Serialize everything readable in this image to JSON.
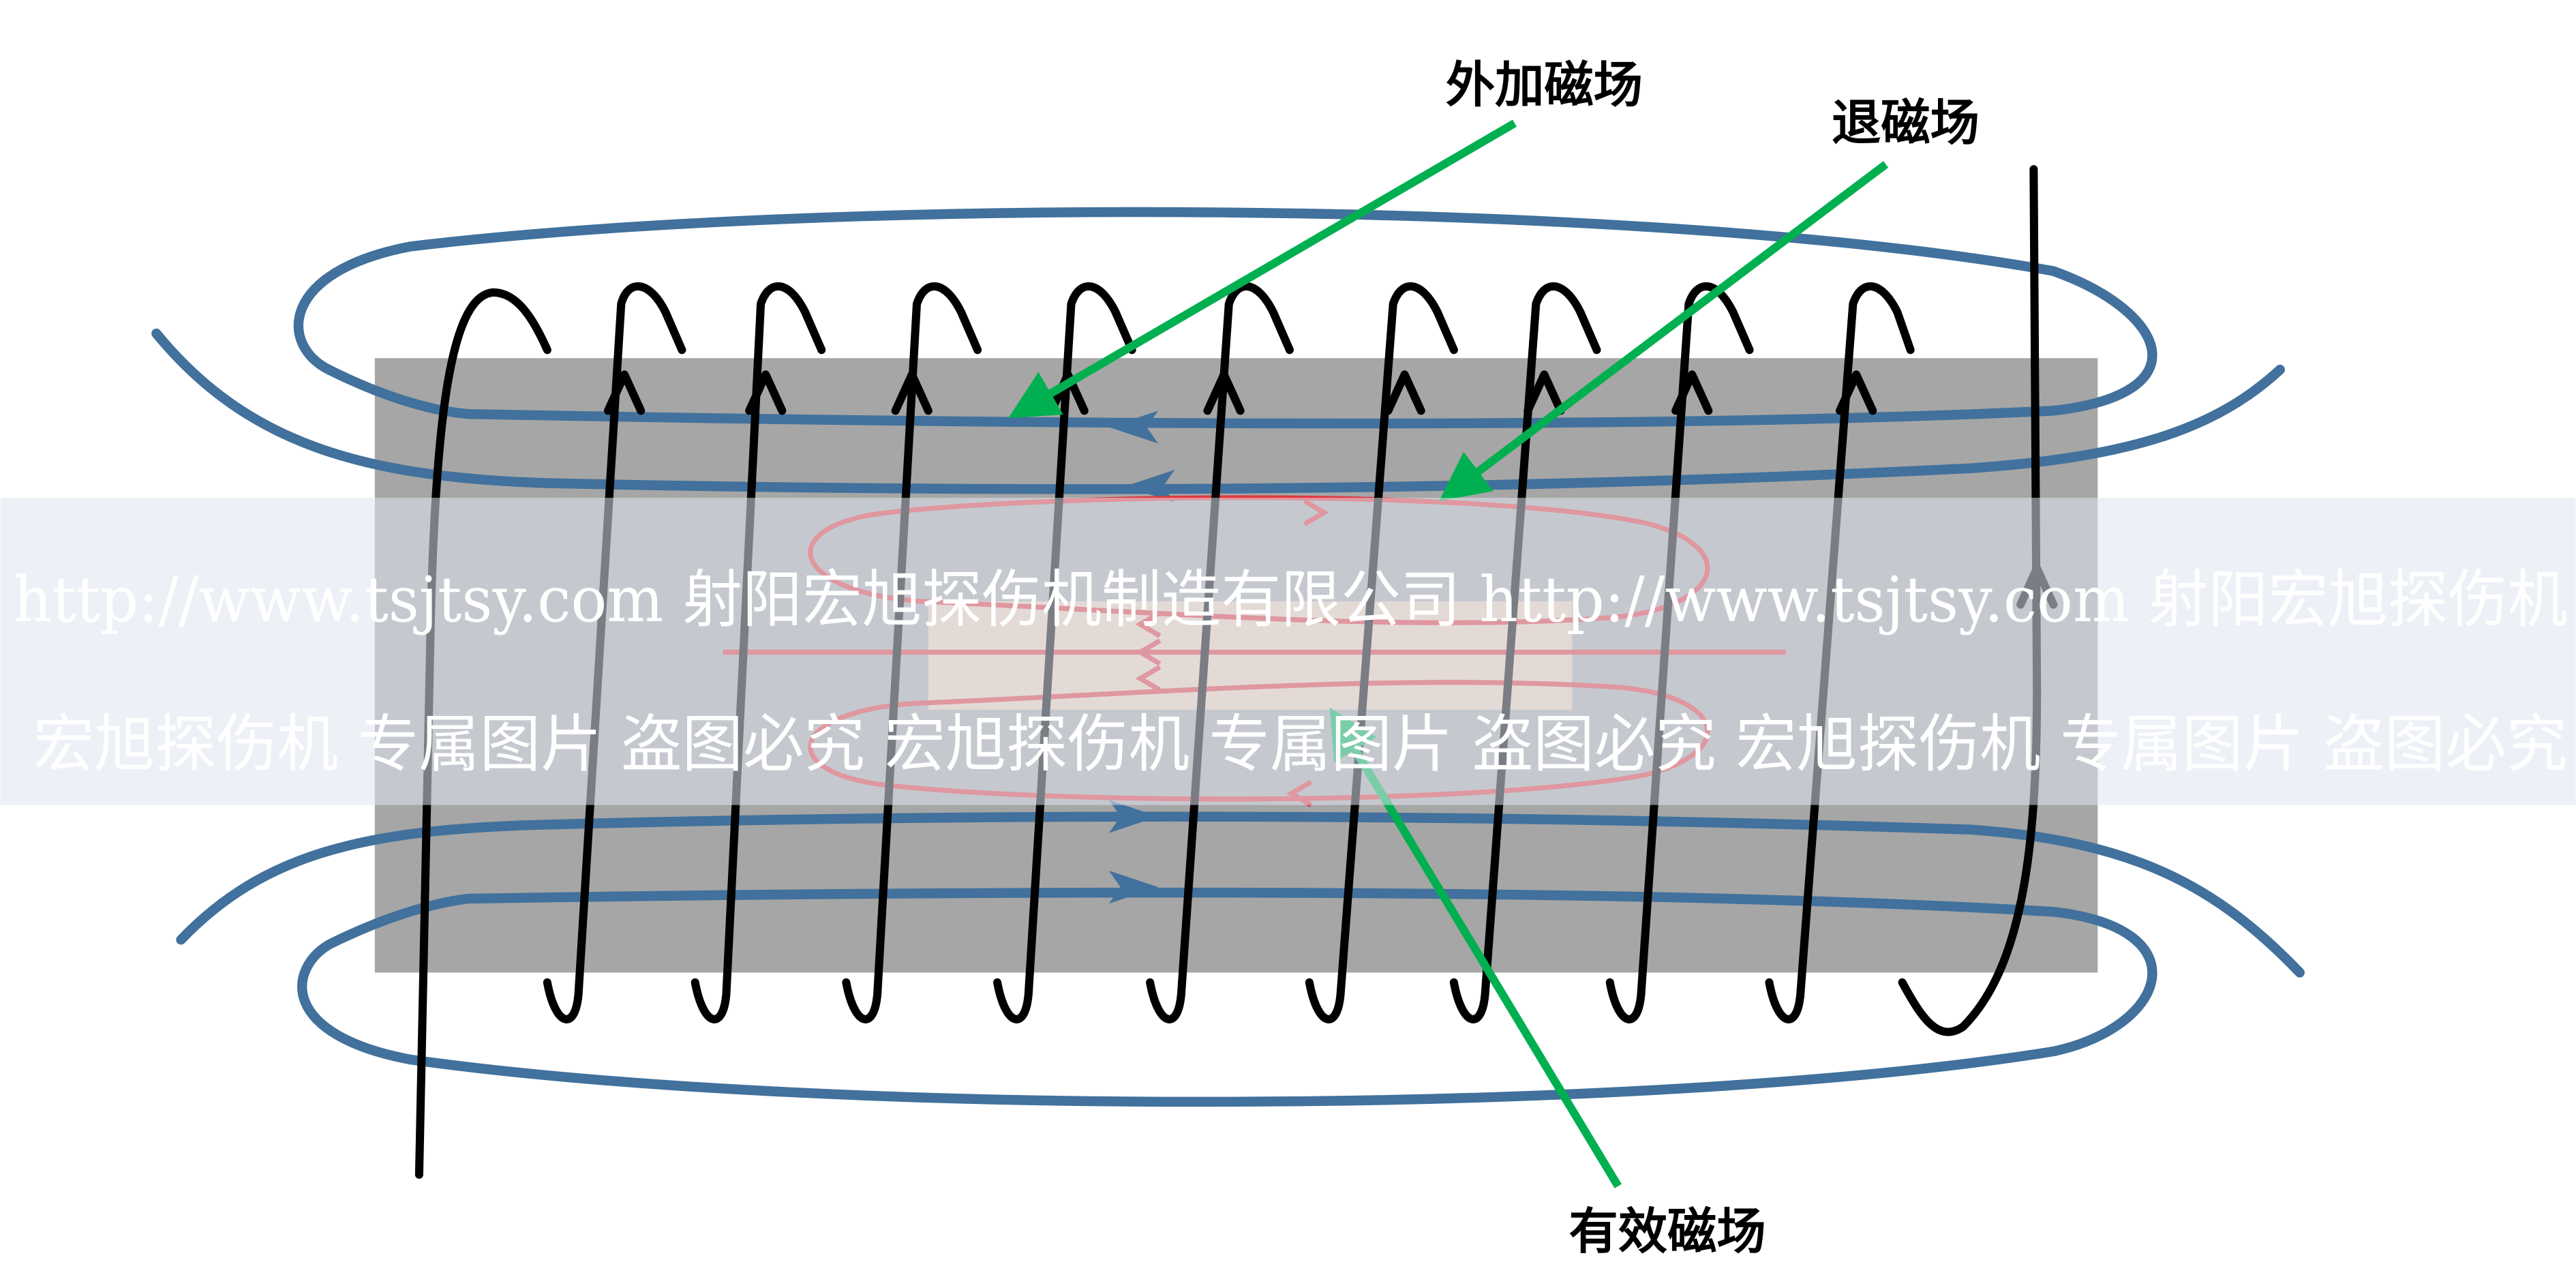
{
  "labels": {
    "applied_field": "外加磁场",
    "demagnetizing_field": "退磁场",
    "effective_field": "有效磁场"
  },
  "watermark": {
    "line1": "http://www.tsjtsy.com 射阳宏旭探伤机制造有限公司  http://www.tsjtsy.com 射阳宏旭探伤机",
    "line2": "宏旭探伤机 专属图片 盗图必究    宏旭探伤机 专属图片 盗图必究    宏旭探伤机 专属图片 盗图必究"
  },
  "colors": {
    "rod": "#a6a6a6",
    "effective_region": "#e9cdb6",
    "applied_field_lines": "#41719c",
    "demagnetizing_field_lines": "#e0393f",
    "coil": "#000000",
    "pointer": "#00b050",
    "watermark_band": "#dfe6f0"
  }
}
